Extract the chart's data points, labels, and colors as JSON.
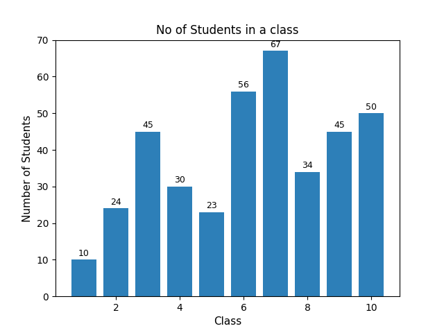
{
  "x": [
    1,
    2,
    3,
    4,
    5,
    6,
    7,
    8,
    9,
    10
  ],
  "values": [
    10,
    24,
    45,
    30,
    23,
    56,
    67,
    34,
    45,
    50
  ],
  "bar_color": "#2d7fb8",
  "title": "No of Students in a class",
  "xlabel": "Class",
  "ylabel": "Number of Students",
  "ylim": [
    0,
    70
  ],
  "title_fontsize": 12,
  "label_fontsize": 9,
  "axis_fontsize": 11,
  "bar_width": 0.8
}
